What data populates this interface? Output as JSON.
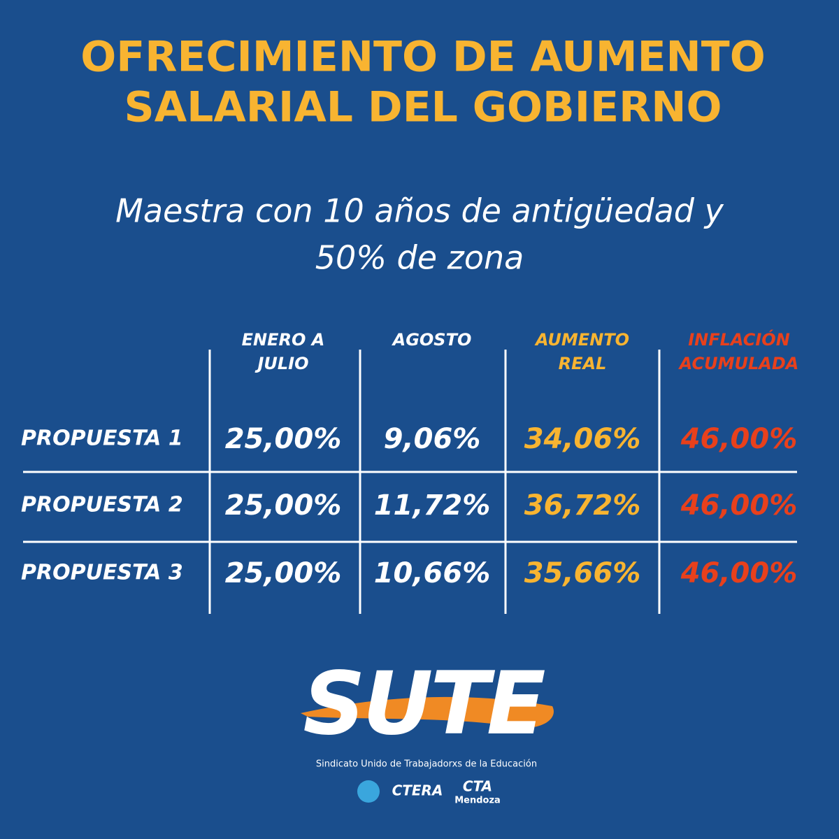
{
  "header": {
    "title_lines": [
      "OFRECIMIENTO DE AUMENTO",
      "SALARIAL DEL GOBIERNO"
    ],
    "subtitle_lines": [
      "Maestra con 10 años de antigüedad y",
      "50% de zona"
    ]
  },
  "table": {
    "headers": [
      [
        "ENERO A",
        "JULIO"
      ],
      [
        "AGOSTO"
      ],
      [
        "AUMENTO",
        "REAL"
      ],
      [
        "INFLACIÓN",
        "ACUMULADA"
      ]
    ],
    "rows": [
      {
        "label": "PROPUESTA 1",
        "cells": [
          "25,00%",
          "9,06%",
          "34,06%",
          "46,00%"
        ]
      },
      {
        "label": "PROPUESTA 2",
        "cells": [
          "25,00%",
          "11,72%",
          "36,72%",
          "46,00%"
        ]
      },
      {
        "label": "PROPUESTA 3",
        "cells": [
          "25,00%",
          "10,66%",
          "35,66%",
          "46,00%"
        ]
      }
    ]
  },
  "footer": {
    "logo": "SUTE",
    "org_name": "Sindicato Unido de Trabajadorxs de la Educación",
    "partners": [
      "CTERA",
      "CTA",
      "Mendoza"
    ]
  }
}
